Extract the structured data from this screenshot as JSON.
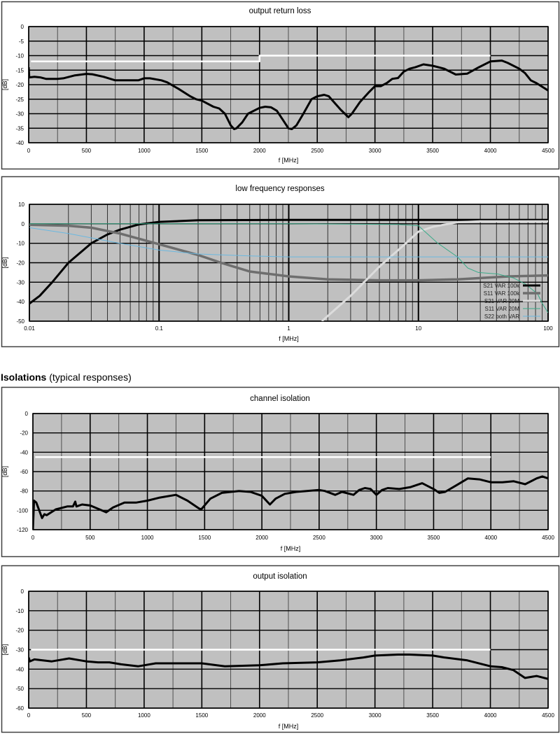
{
  "section_header": {
    "bold": "Isolations",
    "normal": "(typical responses)"
  },
  "colors": {
    "plot_bg": "#c0c0c0",
    "limit_line": "#ffffff",
    "trace": "#000000"
  },
  "chart_data": [
    {
      "type": "line",
      "title": "output return loss",
      "xlabel": "f [MHz]",
      "ylabel": "[dB]",
      "xscale": "linear",
      "xlim": [
        0,
        4500
      ],
      "ylim": [
        -40,
        0
      ],
      "xticks": [
        0,
        500,
        1000,
        1500,
        2000,
        2500,
        3000,
        3500,
        4000,
        4500
      ],
      "yticks": [
        0,
        -5,
        -10,
        -15,
        -20,
        -25,
        -30,
        -35,
        -40
      ],
      "grid": true,
      "series": [
        {
          "role": "limit",
          "color": "#ffffff",
          "x": [
            20,
            2000,
            2000,
            4000
          ],
          "y": [
            -12,
            -12,
            -10,
            -10
          ]
        },
        {
          "role": "measured",
          "color": "#000000",
          "x": [
            0,
            5,
            50,
            100,
            150,
            250,
            300,
            400,
            500,
            550,
            650,
            750,
            850,
            950,
            1000,
            1050,
            1150,
            1200,
            1300,
            1400,
            1450,
            1500,
            1600,
            1650,
            1700,
            1750,
            1780,
            1800,
            1850,
            1900,
            2000,
            2050,
            2100,
            2150,
            2200,
            2250,
            2280,
            2320,
            2380,
            2450,
            2500,
            2560,
            2600,
            2700,
            2770,
            2800,
            2870,
            2950,
            3000,
            3050,
            3100,
            3150,
            3200,
            3250,
            3300,
            3350,
            3420,
            3500,
            3600,
            3700,
            3800,
            3900,
            4000,
            4100,
            4150,
            4250,
            4300,
            4350,
            4400,
            4500
          ],
          "y": [
            -14,
            -17.5,
            -17.3,
            -17.5,
            -18,
            -18,
            -17.8,
            -16.8,
            -16.3,
            -16.4,
            -17.3,
            -18.5,
            -18.5,
            -18.5,
            -17.8,
            -17.8,
            -18.5,
            -19.2,
            -21.5,
            -24,
            -25,
            -25.5,
            -27.6,
            -28.2,
            -30,
            -34,
            -35.3,
            -35,
            -33,
            -30,
            -28,
            -27.6,
            -27.8,
            -29,
            -32,
            -35,
            -35.3,
            -34,
            -30,
            -25,
            -24,
            -23.5,
            -24,
            -28.5,
            -31.2,
            -30,
            -26,
            -22.5,
            -20.5,
            -20.5,
            -19.5,
            -18,
            -17.7,
            -15.5,
            -14.5,
            -14,
            -13,
            -13.5,
            -14.5,
            -16.5,
            -16.2,
            -14,
            -12,
            -11.7,
            -12.5,
            -14.5,
            -16,
            -18.5,
            -19.5,
            -22
          ]
        }
      ]
    },
    {
      "type": "line",
      "title": "low frequency responses",
      "xlabel": "f [MHz]",
      "ylabel": "[dB]",
      "xscale": "log",
      "xlim": [
        0.01,
        100
      ],
      "ylim": [
        -50,
        10
      ],
      "xticks": [
        0.01,
        0.1,
        1,
        10,
        100
      ],
      "xtick_labels": [
        "0.01",
        "0.1",
        "1",
        "10",
        "100"
      ],
      "yticks": [
        10,
        0,
        -10,
        -20,
        -30,
        -40,
        -50
      ],
      "grid": true,
      "legend": "bottom-right",
      "series": [
        {
          "name": "S21 VAR 100k",
          "color": "#000000",
          "x": [
            0.01,
            0.012,
            0.015,
            0.02,
            0.03,
            0.04,
            0.05,
            0.07,
            0.1,
            0.2,
            1,
            100
          ],
          "y": [
            -41,
            -37,
            -30,
            -20,
            -10,
            -5.5,
            -3,
            -0.3,
            1,
            1.8,
            2,
            2
          ]
        },
        {
          "name": "S11 VAR 100k",
          "color": "#6e6e6e",
          "x": [
            0.01,
            0.02,
            0.03,
            0.05,
            0.1,
            0.2,
            0.3,
            0.5,
            1,
            2,
            5,
            10,
            20,
            50,
            100
          ],
          "y": [
            -0.5,
            -1,
            -2,
            -5,
            -10.5,
            -16,
            -20,
            -24.5,
            -27,
            -28.5,
            -29,
            -29,
            -28.5,
            -27,
            -26.5
          ]
        },
        {
          "name": "S21 VAR 20M",
          "color": "#dcdcdc",
          "x": [
            1.8,
            3,
            5,
            8,
            10,
            13,
            20,
            30,
            100
          ],
          "y": [
            -50,
            -37,
            -22,
            -10,
            -4,
            -1.5,
            0.8,
            1.3,
            1.3
          ]
        },
        {
          "name": "S11 VAR 20M",
          "color": "#3aaa88",
          "x": [
            0.01,
            1,
            7,
            10,
            14,
            20,
            24,
            29,
            41,
            54,
            67,
            83,
            90,
            100
          ],
          "y": [
            0,
            0,
            -0.3,
            -1,
            -9.8,
            -17,
            -22.7,
            -25,
            -25.8,
            -27.8,
            -31,
            -36,
            -40.8,
            -45.7
          ]
        },
        {
          "name": "S22 both VAR",
          "color": "#6ab8e0",
          "x": [
            0.01,
            0.02,
            0.05,
            0.1,
            0.2,
            0.5,
            1,
            100
          ],
          "y": [
            -2,
            -5,
            -10,
            -13.5,
            -15.5,
            -16.5,
            -17,
            -17
          ]
        }
      ]
    },
    {
      "type": "line",
      "title": "channel isolation",
      "xlabel": "f [MHz]",
      "ylabel": "[dB]",
      "xscale": "linear",
      "xlim": [
        0,
        4500
      ],
      "ylim": [
        -120,
        0
      ],
      "xticks": [
        0,
        500,
        1000,
        1500,
        2000,
        2500,
        3000,
        3500,
        4000,
        4500
      ],
      "yticks": [
        0,
        -20,
        -40,
        -60,
        -80,
        -100,
        -120
      ],
      "grid": true,
      "series": [
        {
          "role": "limit",
          "color": "#ffffff",
          "x": [
            20,
            4000
          ],
          "y": [
            -45,
            -45
          ]
        },
        {
          "role": "measured",
          "color": "#000000",
          "x": [
            0,
            10,
            30,
            80,
            100,
            120,
            200,
            300,
            350,
            370,
            380,
            430,
            500,
            600,
            640,
            700,
            800,
            900,
            1000,
            1100,
            1250,
            1350,
            1450,
            1470,
            1550,
            1650,
            1800,
            1900,
            2000,
            2070,
            2120,
            2200,
            2300,
            2500,
            2550,
            2640,
            2700,
            2800,
            2850,
            2900,
            2950,
            3000,
            3050,
            3100,
            3200,
            3300,
            3400,
            3500,
            3550,
            3600,
            3700,
            3800,
            3900,
            4000,
            4100,
            4200,
            4300,
            4400,
            4450,
            4500
          ],
          "y": [
            -120,
            -90,
            -92,
            -108,
            -104,
            -105,
            -99,
            -96,
            -96,
            -91,
            -96,
            -94,
            -95,
            -100,
            -102,
            -97,
            -92,
            -92,
            -90,
            -87,
            -84,
            -90,
            -98,
            -99,
            -88,
            -82,
            -80,
            -81,
            -85,
            -94,
            -88,
            -83,
            -81,
            -79,
            -80,
            -84,
            -81,
            -84,
            -79,
            -77,
            -78,
            -84,
            -79,
            -77,
            -78,
            -76,
            -72,
            -78,
            -82,
            -81,
            -74,
            -67,
            -68,
            -71,
            -71,
            -70,
            -73,
            -67,
            -65,
            -67
          ]
        }
      ]
    },
    {
      "type": "line",
      "title": "output isolation",
      "xlabel": "f [MHz]",
      "ylabel": "[dB]",
      "xscale": "linear",
      "xlim": [
        0,
        4500
      ],
      "ylim": [
        -60,
        0
      ],
      "xticks": [
        0,
        500,
        1000,
        1500,
        2000,
        2500,
        3000,
        3500,
        4000,
        4500
      ],
      "yticks": [
        0,
        -10,
        -20,
        -30,
        -40,
        -50,
        -60
      ],
      "grid": true,
      "series": [
        {
          "role": "limit",
          "color": "#ffffff",
          "x": [
            20,
            4000
          ],
          "y": [
            -30,
            -30
          ]
        },
        {
          "role": "measured",
          "color": "#000000",
          "x": [
            0,
            10,
            50,
            200,
            350,
            500,
            600,
            700,
            800,
            950,
            1000,
            1100,
            1500,
            1700,
            2000,
            2200,
            2500,
            2700,
            2900,
            3000,
            3200,
            3300,
            3500,
            3600,
            3800,
            4000,
            4100,
            4200,
            4300,
            4400,
            4500
          ],
          "y": [
            -34,
            -36,
            -35,
            -36,
            -34.5,
            -36,
            -36.5,
            -36.5,
            -37.5,
            -38.5,
            -38,
            -37,
            -37,
            -38.5,
            -38,
            -37,
            -36.5,
            -35.5,
            -34,
            -33,
            -32.5,
            -32.5,
            -33,
            -34,
            -35.5,
            -38.5,
            -39,
            -40.5,
            -44.5,
            -43.5,
            -45
          ]
        }
      ]
    }
  ]
}
